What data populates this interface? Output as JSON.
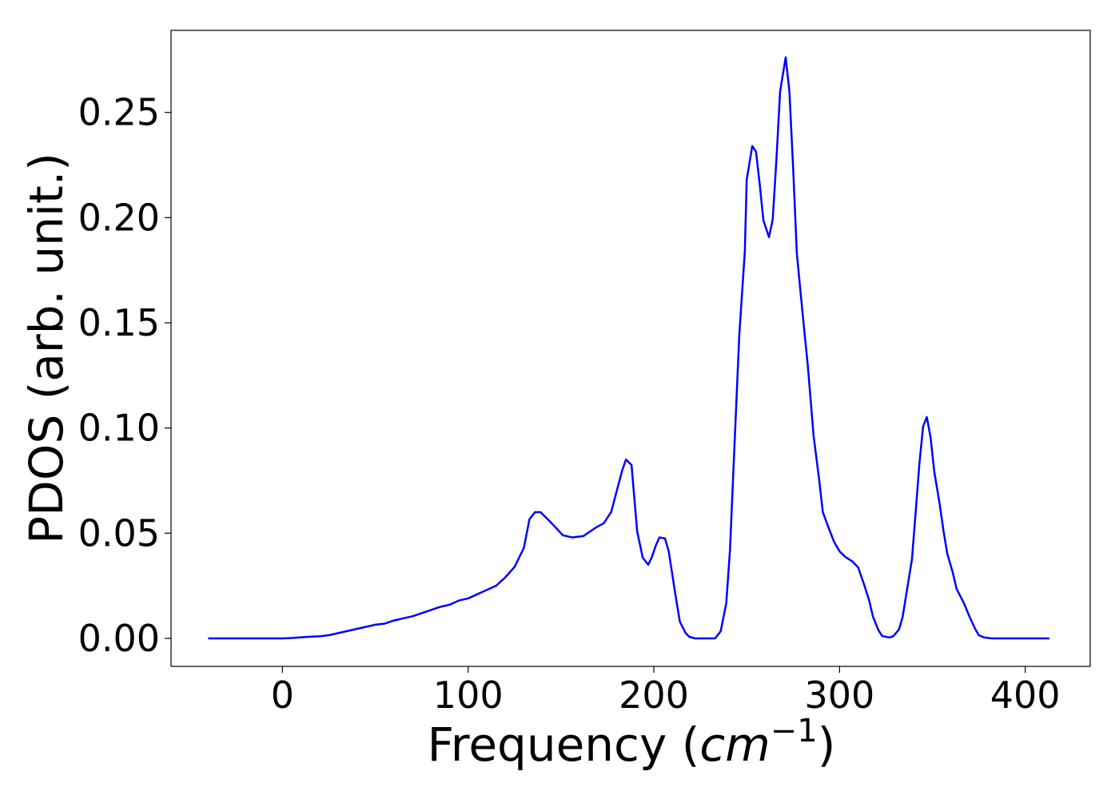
{
  "chart_data": {
    "type": "line",
    "xlabel": {
      "prefix": "Frequency (",
      "unit": "cm",
      "exponent": "−1",
      "suffix": ")"
    },
    "ylabel": "PDOS (arb. unit.)",
    "x": [
      -40,
      -35,
      -30,
      -25,
      -20,
      -15,
      -10,
      -5,
      0,
      5,
      10,
      15,
      20,
      25,
      30,
      35,
      40,
      45,
      50,
      55,
      60,
      65,
      70,
      75,
      80,
      85,
      90,
      95,
      100,
      105,
      110,
      115,
      120,
      125,
      130,
      133,
      136,
      139,
      145,
      151,
      156,
      162,
      169,
      173,
      177,
      180,
      183,
      185,
      188,
      189,
      191,
      194,
      197,
      199,
      201,
      203,
      206,
      208,
      210,
      212,
      214,
      217,
      219,
      222,
      233,
      236,
      239,
      241,
      243,
      246,
      249,
      250,
      253,
      255,
      257,
      259,
      262,
      264,
      266,
      268,
      271,
      273,
      275,
      277,
      280,
      283,
      286,
      289,
      291,
      294,
      297,
      300,
      303,
      307,
      310,
      313,
      316,
      318,
      321,
      323,
      327,
      329,
      332,
      334,
      336,
      339,
      341,
      343,
      345,
      347,
      349,
      351,
      354,
      356,
      358,
      361,
      363,
      367,
      370,
      373,
      375,
      378,
      382,
      390,
      400,
      413
    ],
    "series": [
      {
        "name": "PDOS",
        "color": "#0000ff",
        "values": [
          0,
          0,
          0,
          0,
          0,
          0,
          0,
          0,
          0,
          0.0002,
          0.0005,
          0.0008,
          0.001,
          0.0015,
          0.0025,
          0.0035,
          0.0045,
          0.0055,
          0.0065,
          0.007,
          0.0085,
          0.0095,
          0.0105,
          0.012,
          0.0135,
          0.015,
          0.016,
          0.018,
          0.019,
          0.021,
          0.023,
          0.025,
          0.029,
          0.034,
          0.043,
          0.0566,
          0.06,
          0.06,
          0.0547,
          0.049,
          0.048,
          0.0486,
          0.0528,
          0.0547,
          0.06,
          0.07,
          0.08,
          0.085,
          0.0824,
          0.0718,
          0.051,
          0.0384,
          0.035,
          0.0388,
          0.044,
          0.048,
          0.0475,
          0.0414,
          0.03,
          0.0186,
          0.008,
          0.0027,
          0.0008,
          0,
          0,
          0.0034,
          0.0167,
          0.042,
          0.083,
          0.144,
          0.184,
          0.218,
          0.234,
          0.2314,
          0.216,
          0.1987,
          0.1907,
          0.199,
          0.2276,
          0.26,
          0.2762,
          0.26,
          0.2238,
          0.183,
          0.1554,
          0.1288,
          0.0965,
          0.0756,
          0.06,
          0.0528,
          0.046,
          0.0414,
          0.0388,
          0.0365,
          0.0338,
          0.0262,
          0.0179,
          0.0103,
          0.0038,
          0.0011,
          0.0004,
          0.0011,
          0.0042,
          0.0103,
          0.0213,
          0.0376,
          0.06,
          0.083,
          0.1007,
          0.1052,
          0.0957,
          0.0794,
          0.0634,
          0.051,
          0.0403,
          0.0312,
          0.0236,
          0.0167,
          0.0103,
          0.0046,
          0.0015,
          0.0004,
          0,
          0,
          0,
          0
        ]
      }
    ],
    "xlim": [
      -60,
      435
    ],
    "xticks": [
      0,
      100,
      200,
      300,
      400
    ],
    "ylim": [
      -0.0133,
      0.289
    ],
    "yticks": [
      {
        "value": 0,
        "label": "0.00"
      },
      {
        "value": 0.05,
        "label": "0.05"
      },
      {
        "value": 0.1,
        "label": "0.10"
      },
      {
        "value": 0.15,
        "label": "0.15"
      },
      {
        "value": 0.2,
        "label": "0.20"
      },
      {
        "value": 0.25,
        "label": "0.25"
      }
    ]
  }
}
